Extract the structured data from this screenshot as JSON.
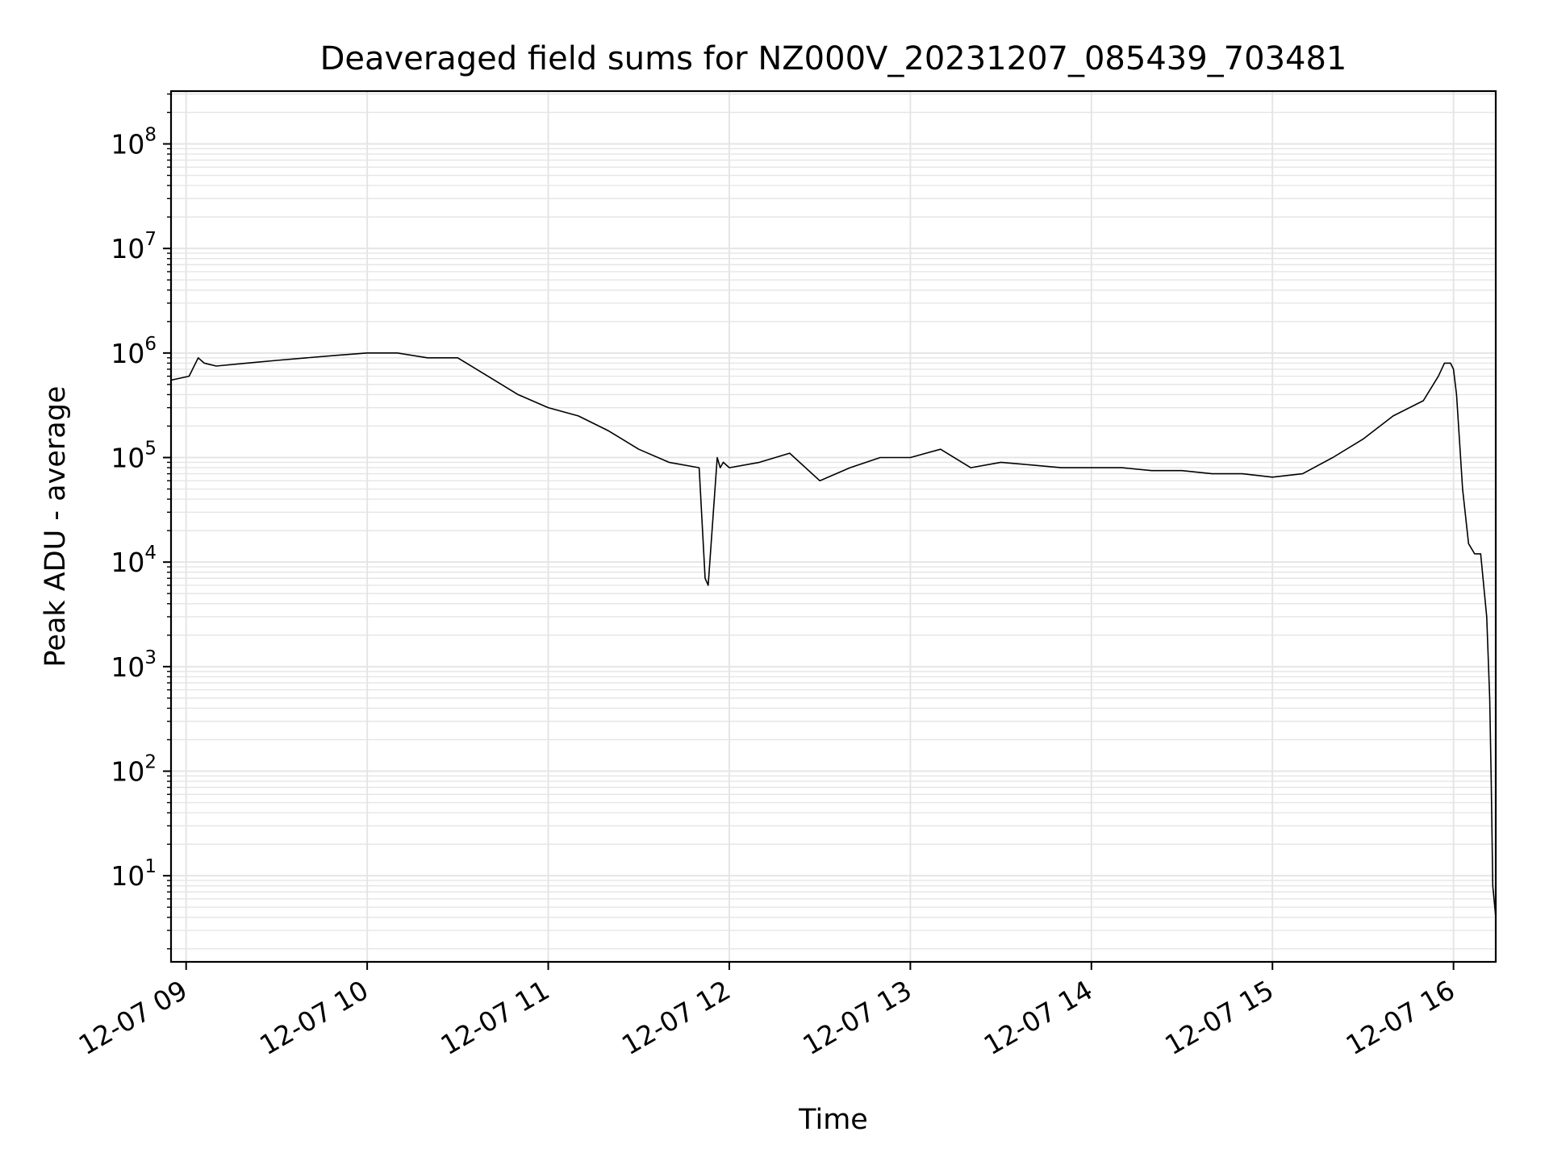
{
  "chart_data": {
    "type": "line",
    "title": "Deaveraged field sums for NZ000V_20231207_085439_703481",
    "xlabel": "Time",
    "ylabel": "Peak ADU - average",
    "yscale": "log",
    "grid": true,
    "legend": "none",
    "line_color": "#000000",
    "grid_color": "#e5e5e5",
    "xlim": [
      "2023-12-07 08:55",
      "2023-12-07 16:14"
    ],
    "ylim": [
      1.5,
      320000000
    ],
    "x_ticks": [
      {
        "time": "2023-12-07 09:00",
        "label": "12-07 09"
      },
      {
        "time": "2023-12-07 10:00",
        "label": "12-07 10"
      },
      {
        "time": "2023-12-07 11:00",
        "label": "12-07 11"
      },
      {
        "time": "2023-12-07 12:00",
        "label": "12-07 12"
      },
      {
        "time": "2023-12-07 13:00",
        "label": "12-07 13"
      },
      {
        "time": "2023-12-07 14:00",
        "label": "12-07 14"
      },
      {
        "time": "2023-12-07 15:00",
        "label": "12-07 15"
      },
      {
        "time": "2023-12-07 16:00",
        "label": "12-07 16"
      }
    ],
    "y_ticks": [
      {
        "value": 10,
        "base": "10",
        "exp": "1"
      },
      {
        "value": 100,
        "base": "10",
        "exp": "2"
      },
      {
        "value": 1000,
        "base": "10",
        "exp": "3"
      },
      {
        "value": 10000,
        "base": "10",
        "exp": "4"
      },
      {
        "value": 100000,
        "base": "10",
        "exp": "5"
      },
      {
        "value": 1000000,
        "base": "10",
        "exp": "6"
      },
      {
        "value": 10000000,
        "base": "10",
        "exp": "7"
      },
      {
        "value": 100000000,
        "base": "10",
        "exp": "8"
      }
    ],
    "series": [
      {
        "x": [
          "2023-12-07 08:55",
          "2023-12-07 09:01",
          "2023-12-07 09:04",
          "2023-12-07 09:06",
          "2023-12-07 09:10",
          "2023-12-07 09:20",
          "2023-12-07 09:30",
          "2023-12-07 09:40",
          "2023-12-07 09:50",
          "2023-12-07 10:00",
          "2023-12-07 10:10",
          "2023-12-07 10:20",
          "2023-12-07 10:30",
          "2023-12-07 10:40",
          "2023-12-07 10:50",
          "2023-12-07 11:00",
          "2023-12-07 11:10",
          "2023-12-07 11:20",
          "2023-12-07 11:30",
          "2023-12-07 11:40",
          "2023-12-07 11:50",
          "2023-12-07 11:52",
          "2023-12-07 11:53",
          "2023-12-07 11:56",
          "2023-12-07 11:57",
          "2023-12-07 11:58",
          "2023-12-07 12:00",
          "2023-12-07 12:10",
          "2023-12-07 12:20",
          "2023-12-07 12:30",
          "2023-12-07 12:40",
          "2023-12-07 12:50",
          "2023-12-07 13:00",
          "2023-12-07 13:10",
          "2023-12-07 13:20",
          "2023-12-07 13:30",
          "2023-12-07 13:40",
          "2023-12-07 13:50",
          "2023-12-07 14:00",
          "2023-12-07 14:10",
          "2023-12-07 14:20",
          "2023-12-07 14:30",
          "2023-12-07 14:40",
          "2023-12-07 14:50",
          "2023-12-07 15:00",
          "2023-12-07 15:10",
          "2023-12-07 15:20",
          "2023-12-07 15:30",
          "2023-12-07 15:40",
          "2023-12-07 15:50",
          "2023-12-07 15:55",
          "2023-12-07 15:57",
          "2023-12-07 15:59",
          "2023-12-07 16:00",
          "2023-12-07 16:01",
          "2023-12-07 16:03",
          "2023-12-07 16:05",
          "2023-12-07 16:07",
          "2023-12-07 16:09",
          "2023-12-07 16:11",
          "2023-12-07 16:12",
          "2023-12-07 16:12.5",
          "2023-12-07 16:13",
          "2023-12-07 16:14"
        ],
        "y": [
          550000,
          600000,
          900000,
          800000,
          750000,
          800000,
          850000,
          900000,
          950000,
          1000000,
          1000000,
          900000,
          900000,
          600000,
          400000,
          300000,
          250000,
          180000,
          120000,
          90000,
          80000,
          7000,
          6000,
          100000,
          80000,
          90000,
          80000,
          90000,
          110000,
          60000,
          80000,
          100000,
          100000,
          120000,
          80000,
          90000,
          85000,
          80000,
          80000,
          80000,
          75000,
          75000,
          70000,
          70000,
          65000,
          70000,
          100000,
          150000,
          250000,
          350000,
          600000,
          800000,
          800000,
          700000,
          400000,
          50000,
          15000,
          12000,
          12000,
          3000,
          500,
          80,
          8,
          4
        ]
      }
    ]
  }
}
